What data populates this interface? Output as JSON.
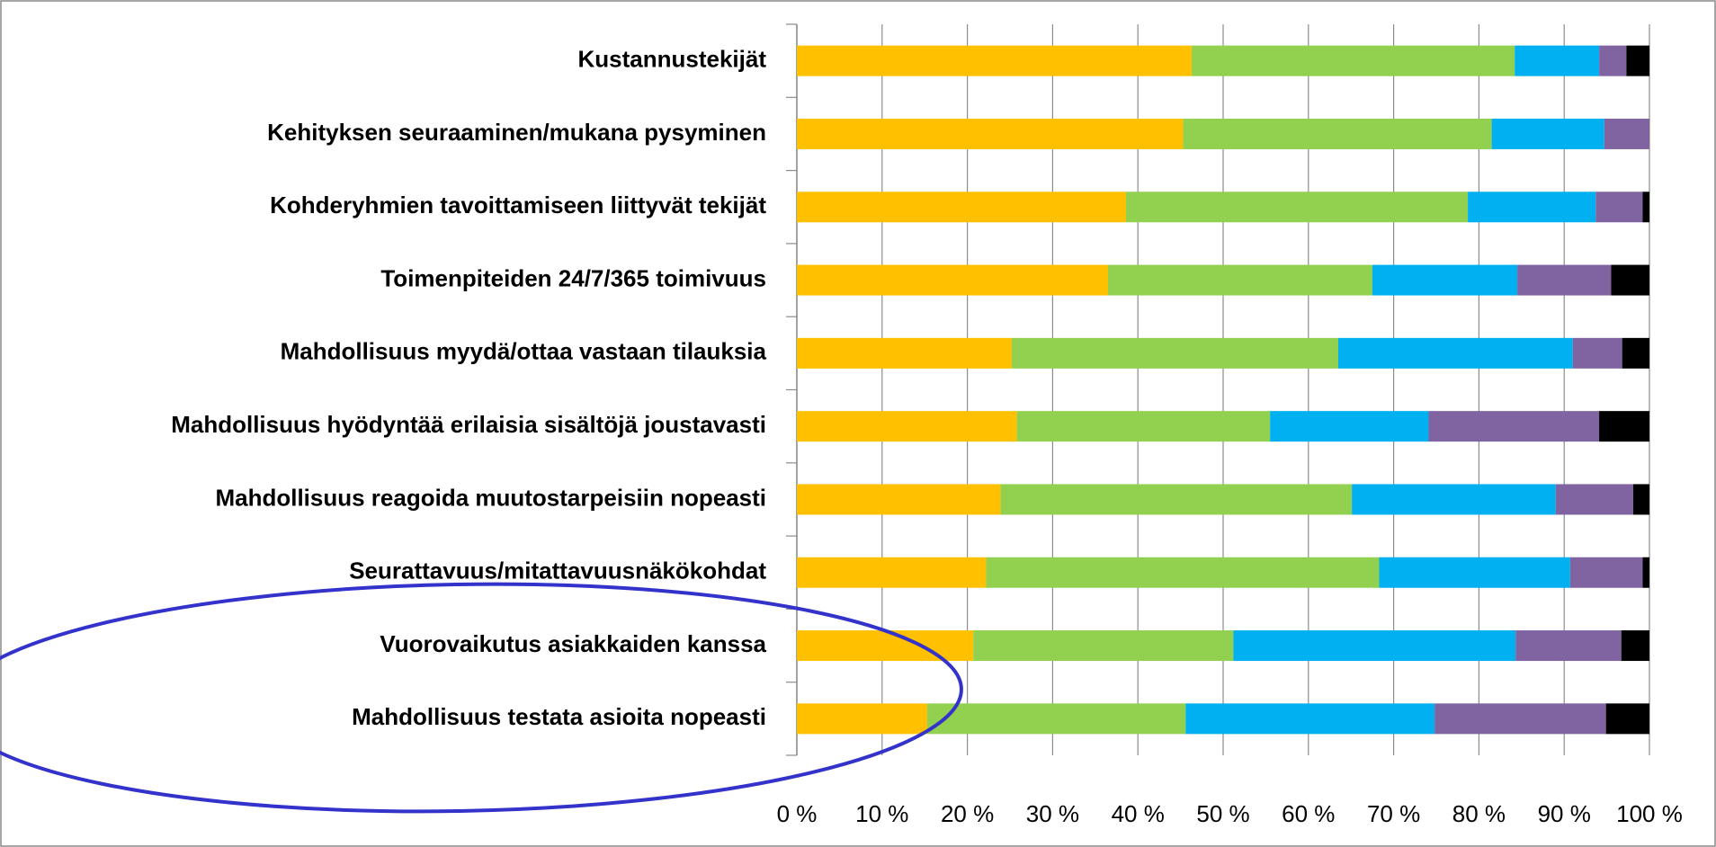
{
  "chart_data": {
    "type": "bar",
    "orientation": "horizontal",
    "stacked": true,
    "categories": [
      "Kustannustekijät",
      "Kehityksen seuraaminen/mukana pysyminen",
      "Kohderyhmien tavoittamiseen liittyvät tekijät",
      "Toimenpiteiden 24/7/365  toimivuus",
      "Mahdollisuus myydä/ottaa vastaan tilauksia",
      "Mahdollisuus hyödyntää erilaisia sisältöjä joustavasti",
      "Mahdollisuus reagoida muutostarpeisiin nopeasti",
      "Seurattavuus/mitattavuusnäkökohdat",
      "Vuorovaikutus asiakkaiden kanssa",
      "Mahdollisuus testata asioita nopeasti"
    ],
    "series": [
      {
        "color": "#FFC000",
        "values": [
          46.3,
          45.3,
          38.6,
          36.5,
          25.2,
          25.8,
          23.9,
          22.2,
          20.7,
          15.3
        ]
      },
      {
        "color": "#92D050",
        "values": [
          37.9,
          36.2,
          40.1,
          31.0,
          38.3,
          29.7,
          41.2,
          46.1,
          30.5,
          30.3
        ]
      },
      {
        "color": "#00B0F0",
        "values": [
          9.9,
          13.2,
          15.0,
          17.0,
          27.5,
          18.6,
          23.9,
          22.4,
          33.1,
          29.2
        ]
      },
      {
        "color": "#8064A2",
        "values": [
          3.2,
          5.3,
          5.5,
          11.0,
          5.8,
          20.0,
          9.1,
          8.5,
          12.4,
          20.1
        ]
      },
      {
        "color": "#000000",
        "values": [
          2.7,
          0,
          0.8,
          4.5,
          3.2,
          5.9,
          1.9,
          0.8,
          3.3,
          5.1
        ]
      }
    ],
    "xlim": [
      0,
      100
    ],
    "xticks": [
      {
        "value": 0,
        "label": "0 %"
      },
      {
        "value": 10,
        "label": "10 %"
      },
      {
        "value": 20,
        "label": "20 %"
      },
      {
        "value": 30,
        "label": "30 %"
      },
      {
        "value": 40,
        "label": "40 %"
      },
      {
        "value": 50,
        "label": "50 %"
      },
      {
        "value": 60,
        "label": "60 %"
      },
      {
        "value": 70,
        "label": "70 %"
      },
      {
        "value": 80,
        "label": "80 %"
      },
      {
        "value": 90,
        "label": "90 %"
      },
      {
        "value": 100,
        "label": "100 %"
      }
    ],
    "grid": true
  }
}
